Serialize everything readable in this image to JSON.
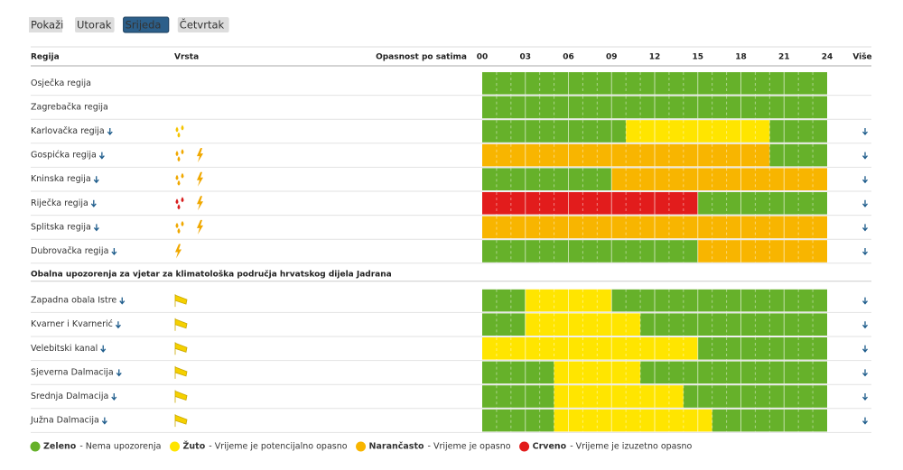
{
  "tabs": {
    "label": "Pokaži",
    "days": [
      {
        "name": "Utorak",
        "selected": false
      },
      {
        "name": "Srijeda",
        "selected": true
      },
      {
        "name": "Četvrtak",
        "selected": false
      }
    ]
  },
  "table": {
    "headers": {
      "region": "Regija",
      "type": "Vrsta",
      "hazard": "Opasnost po satima",
      "more": "Više"
    },
    "hours": [
      {
        "value": 0,
        "label": "00"
      },
      {
        "value": 3,
        "label": "03"
      },
      {
        "value": 6,
        "label": "06"
      },
      {
        "value": 9,
        "label": "09"
      },
      12,
      15,
      18,
      21,
      24
    ],
    "groups": [
      {
        "rows": [
          {
            "name": "Osječka regija",
            "expandable": false,
            "icons": [],
            "segments": [
              {
                "from": 0,
                "to": 24,
                "level": "green"
              }
            ]
          },
          {
            "name": "Zagrebačka regija",
            "expandable": false,
            "icons": [],
            "segments": [
              {
                "from": 0,
                "to": 24,
                "level": "green"
              }
            ]
          },
          {
            "name": "Karlovačka regija",
            "expandable": true,
            "icons": [
              {
                "kind": "rain",
                "color": "#f5c400"
              }
            ],
            "segments": [
              {
                "from": 0,
                "to": 10,
                "level": "green"
              },
              {
                "from": 10,
                "to": 20,
                "level": "yellow"
              },
              {
                "from": 20,
                "to": 24,
                "level": "green"
              }
            ]
          },
          {
            "name": "Gospićka regija",
            "expandable": true,
            "icons": [
              {
                "kind": "rain",
                "color": "#f0a800"
              },
              {
                "kind": "lightning",
                "color": "#f0a800"
              }
            ],
            "segments": [
              {
                "from": 0,
                "to": 20,
                "level": "orange"
              },
              {
                "from": 20,
                "to": 24,
                "level": "green"
              }
            ]
          },
          {
            "name": "Kninska regija",
            "expandable": true,
            "icons": [
              {
                "kind": "rain",
                "color": "#f0a800"
              },
              {
                "kind": "lightning",
                "color": "#f0a800"
              }
            ],
            "segments": [
              {
                "from": 0,
                "to": 9,
                "level": "green"
              },
              {
                "from": 9,
                "to": 24,
                "level": "orange"
              }
            ]
          },
          {
            "name": "Riječka regija",
            "expandable": true,
            "icons": [
              {
                "kind": "rain",
                "color": "#d81e1e"
              },
              {
                "kind": "lightning",
                "color": "#f0a800"
              }
            ],
            "segments": [
              {
                "from": 0,
                "to": 15,
                "level": "red"
              },
              {
                "from": 15,
                "to": 24,
                "level": "green"
              }
            ]
          },
          {
            "name": "Splitska regija",
            "expandable": true,
            "icons": [
              {
                "kind": "rain",
                "color": "#f0a800"
              },
              {
                "kind": "lightning",
                "color": "#f0a800"
              }
            ],
            "segments": [
              {
                "from": 0,
                "to": 24,
                "level": "orange"
              }
            ]
          },
          {
            "name": "Dubrovačka regija",
            "expandable": true,
            "icons": [
              {
                "kind": "lightning",
                "color": "#f0a800"
              }
            ],
            "segments": [
              {
                "from": 0,
                "to": 15,
                "level": "green"
              },
              {
                "from": 15,
                "to": 24,
                "level": "orange"
              }
            ]
          }
        ]
      },
      {
        "title": "Obalna upozorenja za vjetar za klimatološka područja hrvatskog dijela Jadrana",
        "rows": [
          {
            "name": "Zapadna obala Istre",
            "expandable": true,
            "icons": [
              {
                "kind": "wind",
                "color": "#f5d000"
              }
            ],
            "segments": [
              {
                "from": 0,
                "to": 3,
                "level": "green"
              },
              {
                "from": 3,
                "to": 9,
                "level": "yellow"
              },
              {
                "from": 9,
                "to": 24,
                "level": "green"
              }
            ]
          },
          {
            "name": "Kvarner i Kvarnerić",
            "expandable": true,
            "icons": [
              {
                "kind": "wind",
                "color": "#f5d000"
              }
            ],
            "segments": [
              {
                "from": 0,
                "to": 3,
                "level": "green"
              },
              {
                "from": 3,
                "to": 11,
                "level": "yellow"
              },
              {
                "from": 11,
                "to": 24,
                "level": "green"
              }
            ]
          },
          {
            "name": "Velebitski kanal",
            "expandable": true,
            "icons": [
              {
                "kind": "wind",
                "color": "#f5d000"
              }
            ],
            "segments": [
              {
                "from": 0,
                "to": 15,
                "level": "yellow"
              },
              {
                "from": 15,
                "to": 24,
                "level": "green"
              }
            ]
          },
          {
            "name": "Sjeverna Dalmacija",
            "expandable": true,
            "icons": [
              {
                "kind": "wind",
                "color": "#f5d000"
              }
            ],
            "segments": [
              {
                "from": 0,
                "to": 5,
                "level": "green"
              },
              {
                "from": 5,
                "to": 11,
                "level": "yellow"
              },
              {
                "from": 11,
                "to": 24,
                "level": "green"
              }
            ]
          },
          {
            "name": "Srednja Dalmacija",
            "expandable": true,
            "icons": [
              {
                "kind": "wind",
                "color": "#f5d000"
              }
            ],
            "segments": [
              {
                "from": 0,
                "to": 5,
                "level": "green"
              },
              {
                "from": 5,
                "to": 14,
                "level": "yellow"
              },
              {
                "from": 14,
                "to": 24,
                "level": "green"
              }
            ]
          },
          {
            "name": "Južna Dalmacija",
            "expandable": true,
            "icons": [
              {
                "kind": "wind",
                "color": "#f5d000"
              }
            ],
            "segments": [
              {
                "from": 0,
                "to": 5,
                "level": "green"
              },
              {
                "from": 5,
                "to": 16,
                "level": "yellow"
              },
              {
                "from": 16,
                "to": 24,
                "level": "green"
              }
            ]
          }
        ]
      }
    ]
  },
  "legend": [
    {
      "level": "green",
      "color": "#66b12a",
      "name": "Zeleno",
      "description": "- Nema upozorenja"
    },
    {
      "level": "yellow",
      "color": "#ffe500",
      "name": "Žuto",
      "description": "- Vrijeme je potencijalno opasno"
    },
    {
      "level": "orange",
      "color": "#f8b500",
      "name": "Narančasto",
      "description": "- Vrijeme je opasno"
    },
    {
      "level": "red",
      "color": "#e21c1c",
      "name": "Crveno",
      "description": "- Vrijeme je izuzetno opasno"
    }
  ]
}
